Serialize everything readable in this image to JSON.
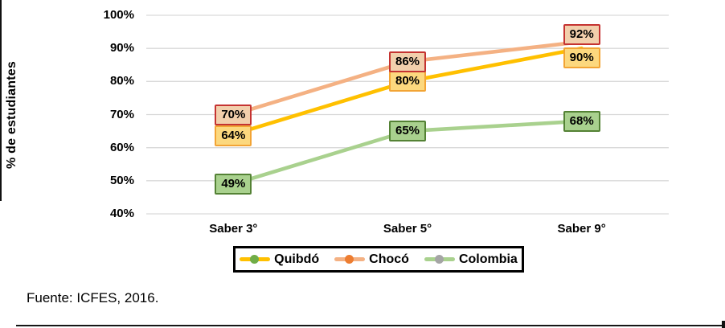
{
  "chart_data": {
    "type": "line",
    "title": "",
    "ylabel": "% de estudiantes",
    "xlabel": "",
    "categories": [
      "Saber 3°",
      "Saber 5°",
      "Saber 9°"
    ],
    "series": [
      {
        "name": "Quibdó",
        "values": [
          64,
          80,
          90
        ],
        "labels": [
          "64%",
          "80%",
          "90%"
        ],
        "line_color": "#FFC000",
        "marker_color": "#70AD47",
        "label_fill": "#FCD87E",
        "label_border": "#F2A435",
        "label_dy": [
          2,
          0,
          12
        ]
      },
      {
        "name": "Chocó",
        "values": [
          70,
          86,
          92
        ],
        "labels": [
          "70%",
          "86%",
          "92%"
        ],
        "line_color": "#F4B183",
        "marker_color": "#ED7D31",
        "label_fill": "#F2CFAC",
        "label_border": "#C53331",
        "label_dy": [
          0,
          0,
          -9
        ]
      },
      {
        "name": "Colombia",
        "values": [
          49,
          65,
          68
        ],
        "labels": [
          "49%",
          "65%",
          "68%"
        ],
        "line_color": "#A9D18E",
        "marker_color": "#A5A5A5",
        "label_fill": "#A9D18E",
        "label_border": "#548235",
        "label_dy": [
          0,
          0,
          0
        ]
      }
    ],
    "y_ticks": [
      {
        "label": "100%",
        "value": 100
      },
      {
        "label": "90%",
        "value": 90
      },
      {
        "label": "80%",
        "value": 80
      },
      {
        "label": "70%",
        "value": 70
      },
      {
        "label": "60%",
        "value": 60
      },
      {
        "label": "50%",
        "value": 50
      },
      {
        "label": "40%",
        "value": 40
      }
    ],
    "ylim": [
      40,
      100
    ],
    "grid": "horizontal",
    "gridline_color": "#D9D9D9",
    "legend_position": "bottom"
  },
  "footer": {
    "source": "Fuente: ICFES, 2016."
  }
}
